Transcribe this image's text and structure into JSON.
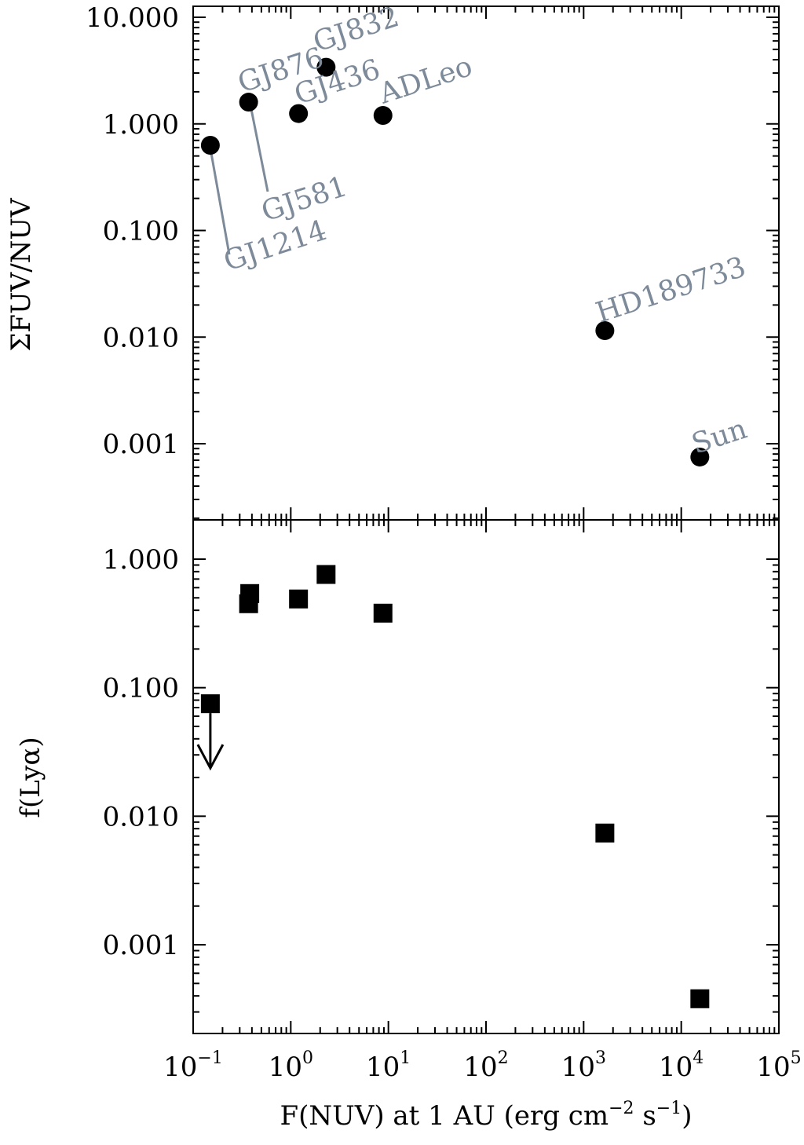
{
  "chart_data": [
    {
      "type": "scatter",
      "panel": "top",
      "ylabel": "ΣFUV/NUV",
      "yscale": "log",
      "xscale": "log",
      "xlim": [
        0.1,
        100000
      ],
      "ylim": [
        0.0002,
        15
      ],
      "yticks": [
        {
          "value": 10,
          "label": "10.000"
        },
        {
          "value": 1,
          "label": "1.000"
        },
        {
          "value": 0.1,
          "label": "0.100"
        },
        {
          "value": 0.01,
          "label": "0.010"
        },
        {
          "value": 0.001,
          "label": "0.001"
        }
      ],
      "points": [
        {
          "name": "GJ1214",
          "x": 0.15,
          "y": 0.63
        },
        {
          "name": "GJ581",
          "x": 0.37,
          "y": 1.55
        },
        {
          "name": "GJ876",
          "x": 0.37,
          "y": 1.6
        },
        {
          "name": "GJ436",
          "x": 1.2,
          "y": 1.25
        },
        {
          "name": "GJ832",
          "x": 2.3,
          "y": 3.4
        },
        {
          "name": "ADLeo",
          "x": 8.8,
          "y": 1.2
        },
        {
          "name": "HD189733",
          "x": 1650,
          "y": 0.0115
        },
        {
          "name": "Sun",
          "x": 15500,
          "y": 0.00075
        }
      ]
    },
    {
      "type": "scatter",
      "panel": "bottom",
      "ylabel": "f(Lyα)",
      "xlabel": "F(NUV) at 1 AU (erg cm⁻² s⁻¹)",
      "yscale": "log",
      "xscale": "log",
      "xlim": [
        0.1,
        100000
      ],
      "ylim": [
        0.0002,
        2
      ],
      "yticks": [
        {
          "value": 1,
          "label": "1.000"
        },
        {
          "value": 0.1,
          "label": "0.100"
        },
        {
          "value": 0.01,
          "label": "0.010"
        },
        {
          "value": 0.001,
          "label": "0.001"
        }
      ],
      "xticks": [
        {
          "value": 0.1,
          "base": "10",
          "exp": "−1"
        },
        {
          "value": 1,
          "base": "10",
          "exp": "0"
        },
        {
          "value": 10,
          "base": "10",
          "exp": "1"
        },
        {
          "value": 100,
          "base": "10",
          "exp": "2"
        },
        {
          "value": 1000,
          "base": "10",
          "exp": "3"
        },
        {
          "value": 10000,
          "base": "10",
          "exp": "4"
        },
        {
          "value": 100000,
          "base": "10",
          "exp": "5"
        }
      ],
      "points": [
        {
          "x": 0.15,
          "y": 0.075,
          "upper_limit": true
        },
        {
          "x": 0.37,
          "y": 0.45
        },
        {
          "x": 0.38,
          "y": 0.54
        },
        {
          "x": 1.2,
          "y": 0.49
        },
        {
          "x": 2.3,
          "y": 0.76
        },
        {
          "x": 8.8,
          "y": 0.38
        },
        {
          "x": 1650,
          "y": 0.0074
        },
        {
          "x": 15500,
          "y": 0.00038
        }
      ]
    }
  ],
  "xlabel_parts": {
    "pre": "F(NUV) at 1 AU (erg cm",
    "exp1": "−2",
    "mid": " s",
    "exp2": "−1",
    "post": ")"
  }
}
